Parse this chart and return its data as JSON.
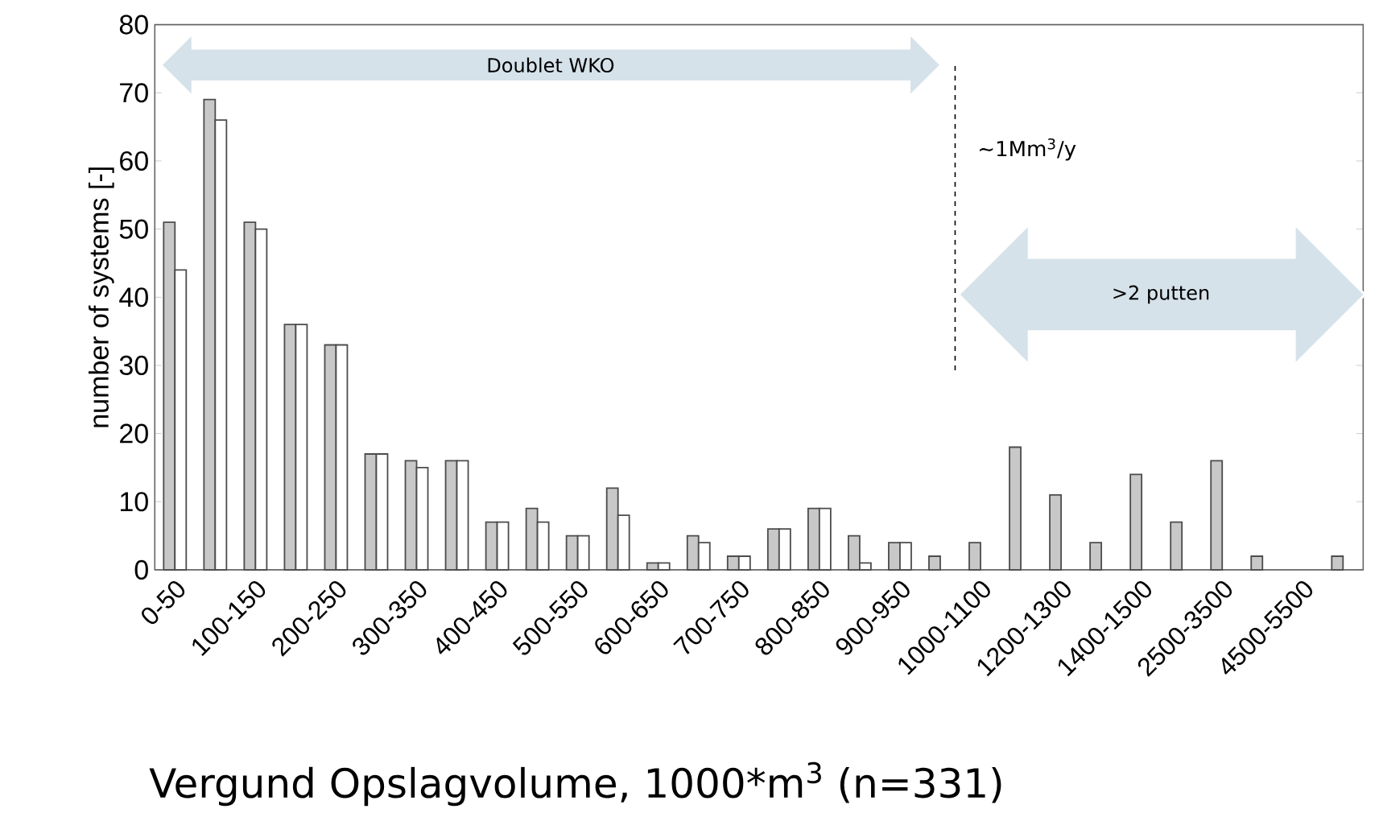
{
  "chart_data": {
    "type": "bar",
    "xlabel": "Vergund Opslagvolume, 1000*m$^{3}$ (n=331)",
    "ylabel": "number of systems [-]",
    "categories": [
      "0-50",
      null,
      "100-150",
      null,
      "200-250",
      null,
      "300-350",
      null,
      "400-450",
      null,
      "500-550",
      null,
      "600-650",
      null,
      "700-750",
      null,
      "800-850",
      null,
      "900-950",
      null,
      "1000-1100",
      null,
      "1200-1300",
      null,
      "1400-1500",
      null,
      "2500-3500",
      null,
      "4500-5500",
      null
    ],
    "series": [
      {
        "color": "#c8c8c8",
        "values": [
          51,
          69,
          51,
          36,
          33,
          17,
          16,
          16,
          7,
          9,
          5,
          12,
          1,
          5,
          2,
          6,
          9,
          5,
          4,
          2,
          4,
          18,
          11,
          4,
          14,
          7,
          16,
          2,
          null,
          2
        ]
      },
      {
        "color": "#ffffff",
        "values": [
          44,
          66,
          50,
          36,
          33,
          17,
          15,
          16,
          7,
          7,
          5,
          8,
          1,
          4,
          2,
          6,
          9,
          1,
          4,
          null,
          null,
          null,
          null,
          null,
          null,
          null,
          null,
          null,
          null,
          null
        ]
      }
    ],
    "ylim": [
      0,
      80
    ],
    "yticks": [
      0,
      10,
      20,
      30,
      40,
      50,
      60,
      70,
      80
    ],
    "grid": false,
    "annotations": [
      "Doublet WKO",
      ">2 putten",
      "~1Mm$^{3}$/y"
    ]
  }
}
